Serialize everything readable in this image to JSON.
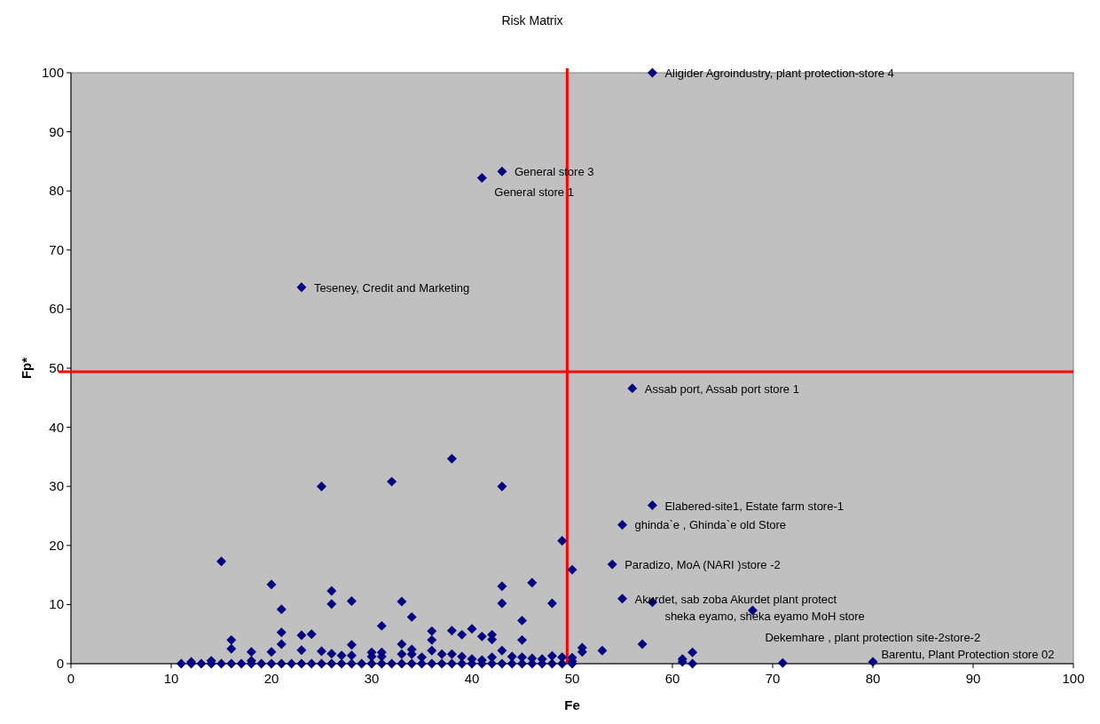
{
  "chart_data": {
    "type": "scatter",
    "title": "Risk Matrix",
    "xlabel": "Fe",
    "ylabel": "Fp*",
    "xlim": [
      0,
      100
    ],
    "xticks": [
      0,
      10,
      20,
      30,
      40,
      50,
      60,
      70,
      80,
      90,
      100
    ],
    "ylim": [
      0,
      100
    ],
    "yticks": [
      0,
      10,
      20,
      30,
      40,
      50,
      60,
      70,
      80,
      90,
      100
    ],
    "grid": false,
    "marker": "diamond",
    "series": [
      {
        "color": "#000080",
        "x": [
          58,
          43,
          41,
          23,
          56,
          58,
          55,
          54,
          55,
          58,
          68,
          80,
          71,
          50,
          49,
          43,
          38,
          32,
          25,
          15,
          20,
          26,
          26,
          28,
          21,
          21,
          23,
          24,
          16,
          16,
          21,
          18,
          20,
          23,
          25,
          26,
          28,
          27,
          28,
          30,
          11,
          12,
          12,
          13,
          14,
          14,
          15,
          16,
          17,
          18,
          18,
          19,
          20,
          21,
          22,
          23,
          24,
          25,
          26,
          27,
          28,
          29,
          30,
          43,
          46,
          43,
          48,
          33,
          34,
          31,
          45,
          45,
          36,
          36,
          36,
          38,
          39,
          40,
          41,
          42,
          42,
          33,
          51,
          51,
          30,
          31,
          31,
          33,
          34,
          34,
          35,
          37,
          38,
          39,
          40,
          41,
          42,
          43,
          44,
          45,
          46,
          47,
          48,
          49,
          50,
          50,
          31,
          32,
          33,
          34,
          35,
          36,
          37,
          38,
          39,
          40,
          41,
          42,
          43,
          44,
          45,
          46,
          47,
          48,
          49,
          50,
          53,
          57,
          61,
          61,
          62,
          62
        ],
        "values": [
          100,
          83.3,
          82.2,
          63.7,
          46.6,
          26.8,
          23.5,
          16.8,
          11,
          10.4,
          9,
          0.3,
          0.1,
          15.9,
          20.8,
          30,
          34.7,
          30.8,
          30,
          17.3,
          13.4,
          12.3,
          10.1,
          10.6,
          9.2,
          5.3,
          4.8,
          5,
          4,
          2.5,
          3.3,
          2,
          2,
          2.3,
          2.1,
          1.7,
          3.2,
          1.4,
          1.4,
          1.9,
          0,
          0,
          0.3,
          0,
          0,
          0.5,
          0,
          0,
          0,
          0,
          0.5,
          0,
          0,
          0,
          0,
          0,
          0,
          0,
          0,
          0,
          0,
          0,
          0,
          13.1,
          13.7,
          10.2,
          10.2,
          10.5,
          7.9,
          6.4,
          7.3,
          4,
          5.5,
          4,
          2.2,
          5.6,
          4.9,
          5.9,
          4.6,
          4.9,
          4.1,
          3.3,
          2.7,
          2,
          1.2,
          1.9,
          1.2,
          1.6,
          2.4,
          1.6,
          1.1,
          1.6,
          1.6,
          1.2,
          0.8,
          0.6,
          1.1,
          2.2,
          1.2,
          1.1,
          0.9,
          0.8,
          1.3,
          1.1,
          1,
          0.4,
          0,
          0,
          0,
          0,
          0,
          0,
          0,
          0,
          0,
          0,
          0,
          0,
          0,
          0,
          0,
          0,
          0,
          0,
          0,
          0,
          2.2,
          3.3,
          0.8,
          0.3,
          1.9,
          0
        ]
      }
    ],
    "ref_lines": [
      {
        "axis": "x",
        "value": 49.5,
        "color": "#ff0000"
      },
      {
        "axis": "y",
        "value": 49.4,
        "color": "#ff0000"
      }
    ],
    "annotations": [
      {
        "text": "Aligider Agroindustry, plant protection-store 4",
        "x": 58,
        "y": 100
      },
      {
        "text": "General store 3",
        "x": 43,
        "y": 83.3
      },
      {
        "text": "General store 1",
        "x": 41,
        "y": 82.2
      },
      {
        "text": "Teseney, Credit and Marketing",
        "x": 23,
        "y": 63.7
      },
      {
        "text": "Assab port, Assab port store 1",
        "x": 56,
        "y": 46.6
      },
      {
        "text": "Elabered-site1, Estate farm store-1",
        "x": 58,
        "y": 26.8
      },
      {
        "text": "ghinda`e , Ghinda`e old Store",
        "x": 55,
        "y": 23.5
      },
      {
        "text": "Paradizo, MoA (NARI )store -2",
        "x": 54,
        "y": 16.8
      },
      {
        "text": "Akurdet, sab zoba Akurdet plant protect",
        "x": 55,
        "y": 11
      },
      {
        "text": "sheka eyamo, sheka eyamo MoH store",
        "x": 58,
        "y": 10.4
      },
      {
        "text": "Dekemhare , plant protection site-2store-2",
        "x": 68,
        "y": 9
      },
      {
        "text": "Barentu, Plant Protection store 02",
        "x": 80,
        "y": 0.3
      }
    ]
  }
}
